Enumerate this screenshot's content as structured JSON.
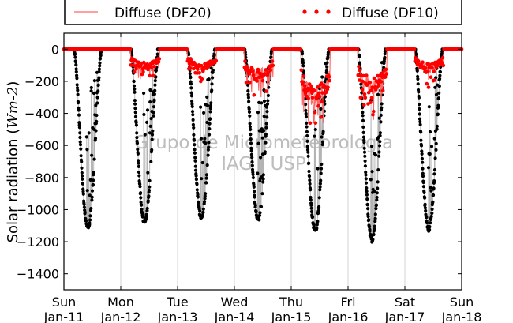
{
  "chart_data": {
    "type": "scatter",
    "ylabel_text": "Solar radiation (",
    "ylabel_unit": "Wm-2",
    "ylabel_close": ")",
    "ylim": [
      -1500,
      100
    ],
    "yticks": [
      0,
      -200,
      -400,
      -600,
      -800,
      -1000,
      -1200,
      -1400
    ],
    "xlim": [
      0,
      7
    ],
    "xticks": [
      {
        "x": 0,
        "day": "Sun",
        "date": "Jan-11"
      },
      {
        "x": 1,
        "day": "Mon",
        "date": "Jan-12"
      },
      {
        "x": 2,
        "day": "Tue",
        "date": "Jan-13"
      },
      {
        "x": 3,
        "day": "Wed",
        "date": "Jan-14"
      },
      {
        "x": 4,
        "day": "Thu",
        "date": "Jan-15"
      },
      {
        "x": 5,
        "day": "Fri",
        "date": "Jan-16"
      },
      {
        "x": 6,
        "day": "Sat",
        "date": "Jan-17"
      },
      {
        "x": 7,
        "day": "Sun",
        "date": "Jan-18"
      }
    ],
    "grid": "vertical",
    "legend_position": "top",
    "watermark": [
      "Grupo de Micrometeorologia",
      "IAG / USP"
    ],
    "series": [
      {
        "name": "Diffuse (DF20)",
        "style": "line",
        "color": "#ff6666",
        "days": [
          {
            "day": 0,
            "base": 0
          },
          {
            "day": 1,
            "base": -110
          },
          {
            "day": 2,
            "base": -110
          },
          {
            "day": 3,
            "base": -160
          },
          {
            "day": 4,
            "base": -300
          },
          {
            "day": 5,
            "base": -230
          },
          {
            "day": 6,
            "base": -120
          }
        ]
      },
      {
        "name": "Diffuse (DF10)",
        "style": "dots",
        "color": "#ff0000",
        "days": [
          {
            "day": 0,
            "base": 0
          },
          {
            "day": 1,
            "base": -110
          },
          {
            "day": 2,
            "base": -110
          },
          {
            "day": 3,
            "base": -160
          },
          {
            "day": 4,
            "base": -300
          },
          {
            "day": 5,
            "base": -230
          },
          {
            "day": 6,
            "base": -120
          }
        ]
      },
      {
        "name": "",
        "style": "dots",
        "color": "#000000",
        "line_color": "#b3b3b3",
        "days": [
          {
            "day": 0,
            "peak": -1110
          },
          {
            "day": 1,
            "peak": -1080
          },
          {
            "day": 2,
            "peak": -1050
          },
          {
            "day": 3,
            "peak": -1060
          },
          {
            "day": 4,
            "peak": -1130
          },
          {
            "day": 5,
            "peak": -1190
          },
          {
            "day": 6,
            "peak": -1120
          }
        ]
      }
    ]
  }
}
